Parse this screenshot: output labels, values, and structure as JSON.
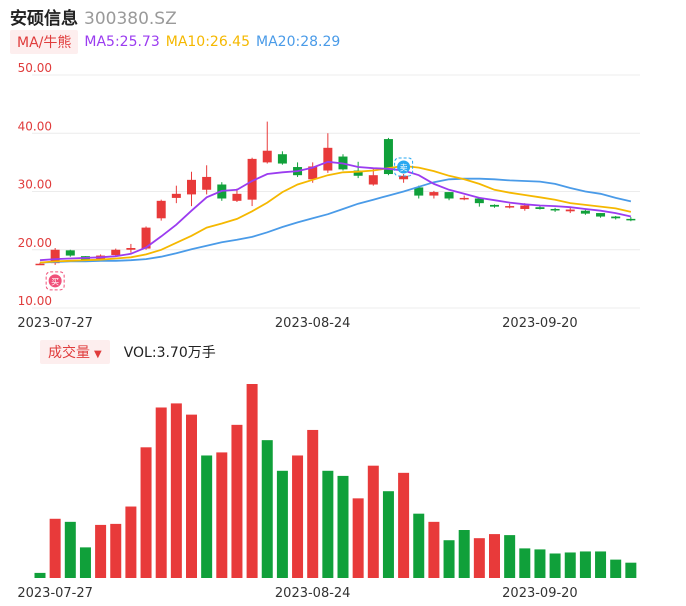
{
  "header": {
    "name": "安硕信息",
    "code": "300380.SZ"
  },
  "legend": {
    "toggle_label": "MA/牛熊",
    "ma5": "MA5:25.73",
    "ma10": "MA10:26.45",
    "ma20": "MA20:28.29",
    "colors": {
      "ma5": "#9b3cf0",
      "ma10": "#f5b800",
      "ma20": "#4a9be8"
    }
  },
  "volume_legend": {
    "toggle_label": "成交量",
    "caret": "▼",
    "value": "VOL:3.70万手"
  },
  "markers": {
    "buy": "买",
    "sell": "卖"
  },
  "chart_data": [
    {
      "type": "candlestick",
      "ylim": [
        10,
        50
      ],
      "y_ticks": [
        "10.00",
        "20.00",
        "30.00",
        "40.00",
        "50.00"
      ],
      "x_tick_labels": [
        "2023-07-27",
        "2023-08-24",
        "2023-09-20"
      ],
      "x_tick_index": [
        1,
        18,
        33
      ],
      "colors": {
        "up": "#e83a3a",
        "down": "#10a03a"
      },
      "ohlc": [
        [
          17.6,
          17.8,
          17.5,
          17.6
        ],
        [
          17.7,
          20.3,
          17.4,
          20.0
        ],
        [
          19.9,
          20.0,
          18.8,
          19.0
        ],
        [
          18.9,
          18.9,
          18.2,
          18.3
        ],
        [
          18.3,
          19.2,
          18.0,
          19.0
        ],
        [
          19.1,
          20.2,
          18.9,
          20.0
        ],
        [
          20.0,
          21.0,
          19.5,
          20.3
        ],
        [
          20.2,
          24.0,
          20.0,
          23.8
        ],
        [
          25.4,
          28.6,
          25.0,
          28.4
        ],
        [
          28.9,
          31.0,
          28.0,
          29.6
        ],
        [
          29.5,
          33.4,
          27.5,
          32.0
        ],
        [
          30.3,
          34.5,
          29.5,
          32.5
        ],
        [
          31.2,
          31.6,
          28.4,
          28.8
        ],
        [
          28.4,
          30.5,
          28.2,
          29.6
        ],
        [
          28.6,
          35.8,
          27.5,
          35.6
        ],
        [
          35.0,
          42.0,
          34.8,
          37.0
        ],
        [
          36.4,
          36.9,
          34.6,
          34.8
        ],
        [
          34.2,
          35.0,
          32.5,
          32.8
        ],
        [
          32.1,
          35.0,
          31.5,
          34.3
        ],
        [
          33.6,
          40.0,
          33.2,
          37.5
        ],
        [
          36.0,
          36.4,
          33.6,
          33.8
        ],
        [
          33.6,
          35.1,
          32.3,
          32.7
        ],
        [
          31.2,
          34.0,
          31.0,
          32.8
        ],
        [
          39.0,
          39.2,
          32.8,
          33.0
        ],
        [
          32.1,
          33.0,
          31.5,
          32.7
        ],
        [
          30.7,
          31.0,
          28.8,
          29.3
        ],
        [
          29.3,
          30.1,
          28.8,
          29.9
        ],
        [
          29.9,
          29.9,
          28.5,
          28.8
        ],
        [
          28.9,
          29.3,
          28.5,
          28.9
        ],
        [
          28.8,
          29.0,
          27.4,
          28.0
        ],
        [
          27.7,
          27.8,
          27.2,
          27.4
        ],
        [
          27.3,
          27.9,
          27.1,
          27.5
        ],
        [
          27.0,
          28.0,
          26.7,
          27.6
        ],
        [
          27.3,
          27.5,
          26.9,
          27.0
        ],
        [
          27.0,
          27.2,
          26.5,
          26.8
        ],
        [
          26.6,
          27.3,
          26.3,
          26.9
        ],
        [
          26.7,
          26.9,
          26.0,
          26.2
        ],
        [
          26.3,
          26.3,
          25.5,
          25.7
        ],
        [
          25.7,
          25.8,
          25.2,
          25.4
        ],
        [
          25.3,
          25.6,
          24.9,
          25.2
        ]
      ],
      "ma5": [
        18.2,
        18.4,
        18.5,
        18.6,
        18.7,
        18.9,
        19.3,
        20.4,
        22.3,
        24.3,
        26.7,
        29.0,
        30.1,
        30.3,
        31.8,
        33.0,
        33.3,
        33.5,
        34.1,
        35.1,
        34.8,
        34.2,
        34.0,
        33.9,
        33.6,
        32.8,
        31.3,
        30.3,
        29.6,
        28.9,
        28.5,
        28.1,
        27.8,
        27.6,
        27.5,
        27.3,
        27.0,
        26.7,
        26.3,
        25.7
      ],
      "ma10": [
        17.8,
        18.0,
        18.1,
        18.2,
        18.3,
        18.5,
        18.7,
        19.2,
        20.0,
        21.2,
        22.4,
        23.8,
        24.5,
        25.3,
        26.6,
        28.1,
        29.9,
        31.2,
        32.0,
        32.8,
        33.3,
        33.4,
        33.6,
        34.0,
        34.4,
        34.1,
        33.5,
        32.7,
        32.1,
        31.3,
        30.3,
        29.8,
        29.4,
        29.0,
        28.6,
        28.0,
        27.7,
        27.4,
        27.1,
        26.5
      ],
      "ma20": [
        17.8,
        17.9,
        18.0,
        18.0,
        18.1,
        18.1,
        18.2,
        18.4,
        18.8,
        19.4,
        20.1,
        20.7,
        21.3,
        21.7,
        22.2,
        23.0,
        23.9,
        24.7,
        25.4,
        26.1,
        27.0,
        27.9,
        28.6,
        29.3,
        30.0,
        30.8,
        31.6,
        32.1,
        32.2,
        32.2,
        32.1,
        31.9,
        31.8,
        31.7,
        31.3,
        30.6,
        30.0,
        29.6,
        28.9,
        28.3
      ],
      "markers": [
        {
          "index": 1,
          "type": "buy"
        },
        {
          "index": 24,
          "type": "sell"
        }
      ]
    },
    {
      "type": "bar",
      "title": "成交量",
      "x_tick_labels": [
        "2023-07-27",
        "2023-08-24",
        "2023-09-20"
      ],
      "values": [
        0.5,
        5.8,
        5.5,
        3.0,
        5.2,
        5.3,
        7.0,
        12.8,
        16.7,
        17.1,
        16.0,
        12.0,
        12.3,
        15.0,
        19.0,
        13.5,
        10.5,
        12.0,
        14.5,
        10.5,
        10.0,
        7.8,
        11.0,
        8.5,
        10.3,
        6.3,
        5.5,
        3.7,
        4.7,
        3.9,
        4.3,
        4.2,
        2.9,
        2.8,
        2.4,
        2.5,
        2.6,
        2.6,
        1.8,
        1.5
      ],
      "directions": [
        "down",
        "up",
        "down",
        "down",
        "up",
        "up",
        "up",
        "up",
        "up",
        "up",
        "up",
        "down",
        "up",
        "up",
        "up",
        "down",
        "down",
        "up",
        "up",
        "down",
        "down",
        "up",
        "up",
        "down",
        "up",
        "down",
        "up",
        "down",
        "down",
        "up",
        "up",
        "down",
        "down",
        "down",
        "down",
        "down",
        "down",
        "down",
        "down",
        "down"
      ]
    }
  ]
}
